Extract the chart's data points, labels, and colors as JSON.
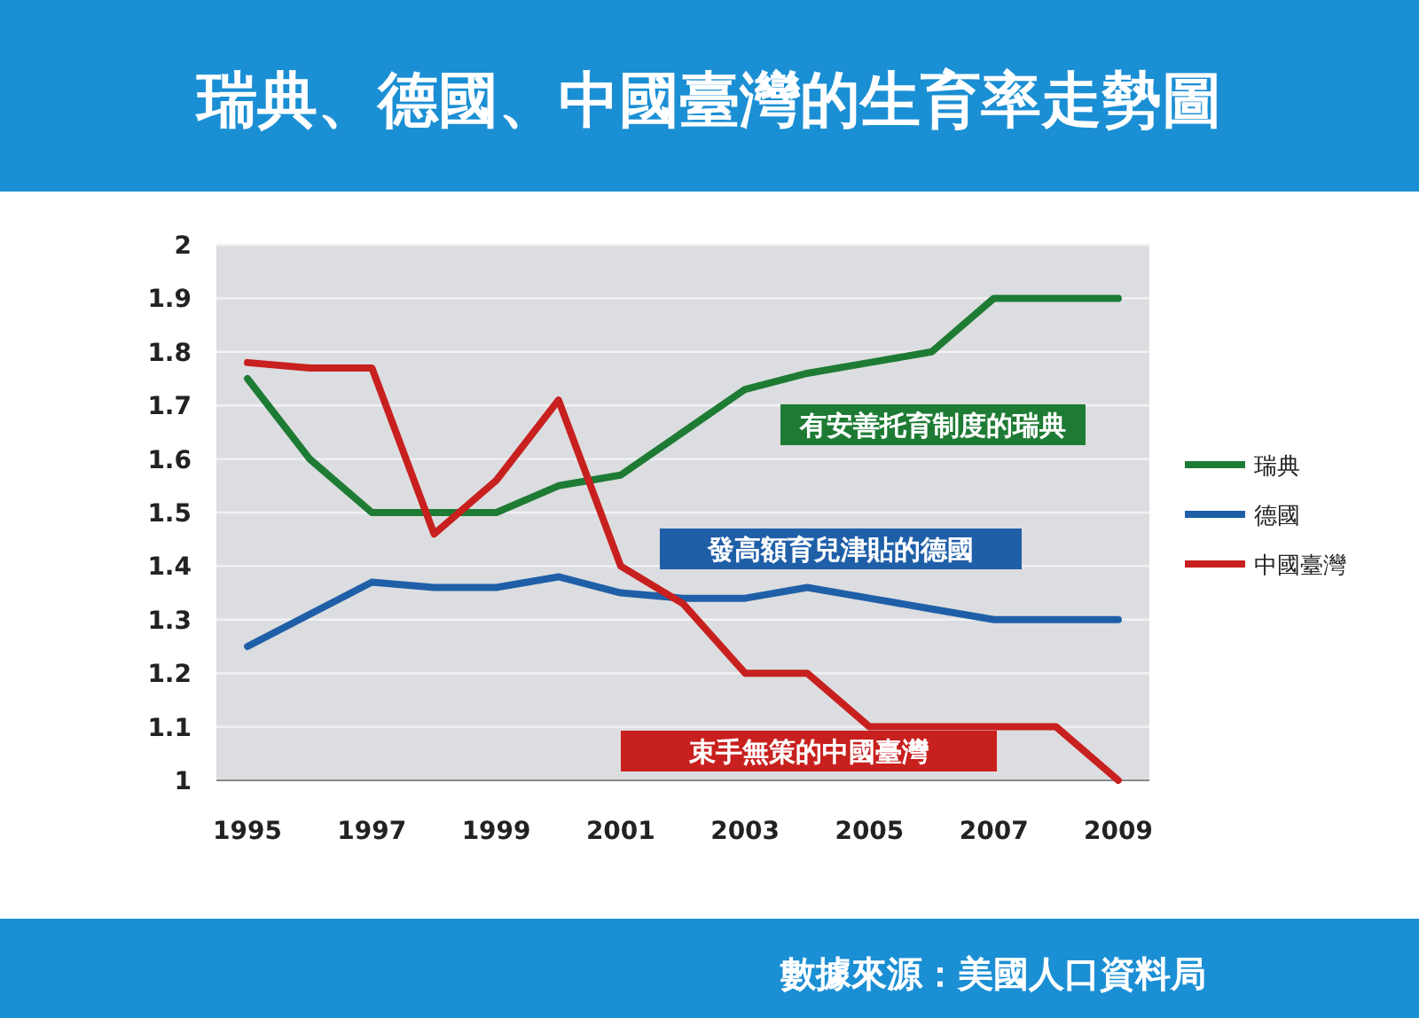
{
  "chart_data": {
    "type": "line",
    "title": "瑞典、德國、中國臺灣的生育率走勢圖",
    "x": [
      1995,
      1996,
      1997,
      1998,
      1999,
      2000,
      2001,
      2002,
      2003,
      2004,
      2005,
      2006,
      2007,
      2008,
      2009
    ],
    "series": [
      {
        "name": "瑞典",
        "color": "#1e7b34",
        "values": [
          1.75,
          1.6,
          1.5,
          1.5,
          1.5,
          1.55,
          1.57,
          1.65,
          1.73,
          1.76,
          1.78,
          1.8,
          1.9,
          1.9,
          1.9
        ]
      },
      {
        "name": "德國",
        "color": "#1f5fa8",
        "values": [
          1.25,
          1.31,
          1.37,
          1.36,
          1.36,
          1.38,
          1.35,
          1.34,
          1.34,
          1.36,
          1.34,
          1.32,
          1.3,
          1.3,
          1.3
        ]
      },
      {
        "name": "中國臺灣",
        "color": "#c8201e",
        "values": [
          1.78,
          1.77,
          1.77,
          1.46,
          1.56,
          1.71,
          1.4,
          1.33,
          1.2,
          1.2,
          1.1,
          1.1,
          1.1,
          1.1,
          1.0
        ]
      }
    ],
    "annotations": [
      "有安善托育制度的瑞典",
      "發高額育兒津貼的德國",
      "束手無策的中國臺灣",
      "數據來源：美國人口資料局"
    ],
    "xlim": [
      1994.5,
      2009.5
    ],
    "ylim": [
      1,
      2
    ],
    "xticks": [
      1995,
      1997,
      1999,
      2001,
      2003,
      2005,
      2007,
      2009
    ],
    "yticks": [
      1,
      1.1,
      1.2,
      1.3,
      1.4,
      1.5,
      1.6,
      1.7,
      1.8,
      1.9,
      2
    ],
    "grid": "y",
    "legend": "right",
    "line_style": "solid",
    "marker": "none"
  }
}
